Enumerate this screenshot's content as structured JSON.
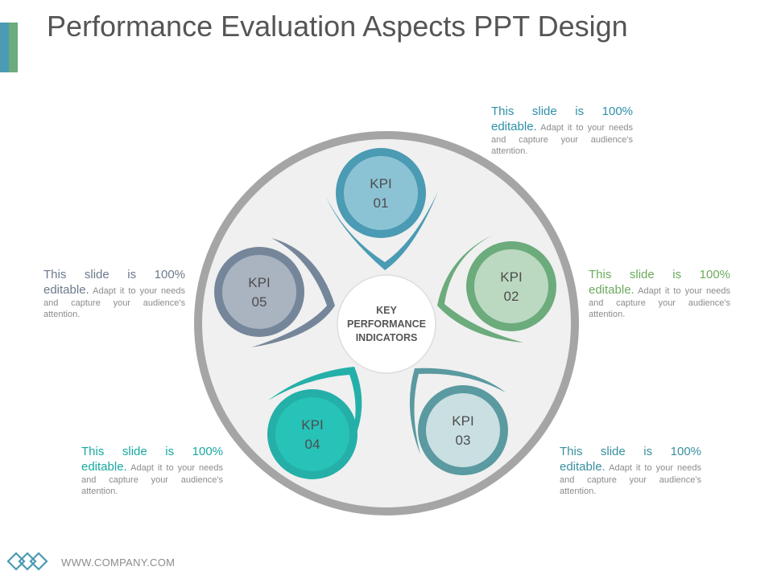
{
  "slide": {
    "title": "Performance Evaluation Aspects PPT Design",
    "footer": "WWW.COMPANY.COM"
  },
  "center": {
    "lines": [
      "KEY",
      "PERFORMANCE",
      "INDICATORS"
    ]
  },
  "kpis": [
    {
      "label": "KPI",
      "number": "01",
      "color": "#4a9bb3",
      "inner": "#8cc3d4"
    },
    {
      "label": "KPI",
      "number": "02",
      "color": "#6cab7c",
      "inner": "#bbd9c1"
    },
    {
      "label": "KPI",
      "number": "03",
      "color": "#5a9aa0",
      "inner": "#c9dfe2"
    },
    {
      "label": "KPI",
      "number": "04",
      "color": "#24b0a8",
      "inner": "#27c2b8"
    },
    {
      "label": "KPI",
      "number": "05",
      "color": "#76869a",
      "inner": "#aab3c0"
    }
  ],
  "descriptions": [
    {
      "highlight": "This slide is 100% editable.",
      "body": "Adapt it to your needs and capture your audience's attention.",
      "color": "#2e8fa8"
    },
    {
      "highlight": "This slide is 100% editable.",
      "body": "Adapt it to your needs and capture your audience's attention.",
      "color": "#6cab5c"
    },
    {
      "highlight": "This slide is 100% editable.",
      "body": "Adapt it to your needs and capture your audience's attention.",
      "color": "#3a8fa0"
    },
    {
      "highlight": "This slide is 100% editable.",
      "body": "Adapt it to your needs and capture your audience's attention.",
      "color": "#17a9a0"
    },
    {
      "highlight": "This slide is 100% editable.",
      "body": "Adapt it to your needs and capture your audience's attention.",
      "color": "#6c7a8c"
    }
  ],
  "colors": {
    "outer_ring": "#a5a5a5",
    "disc_fill": "#f0f0f0",
    "logo": "#4a9bb3"
  }
}
